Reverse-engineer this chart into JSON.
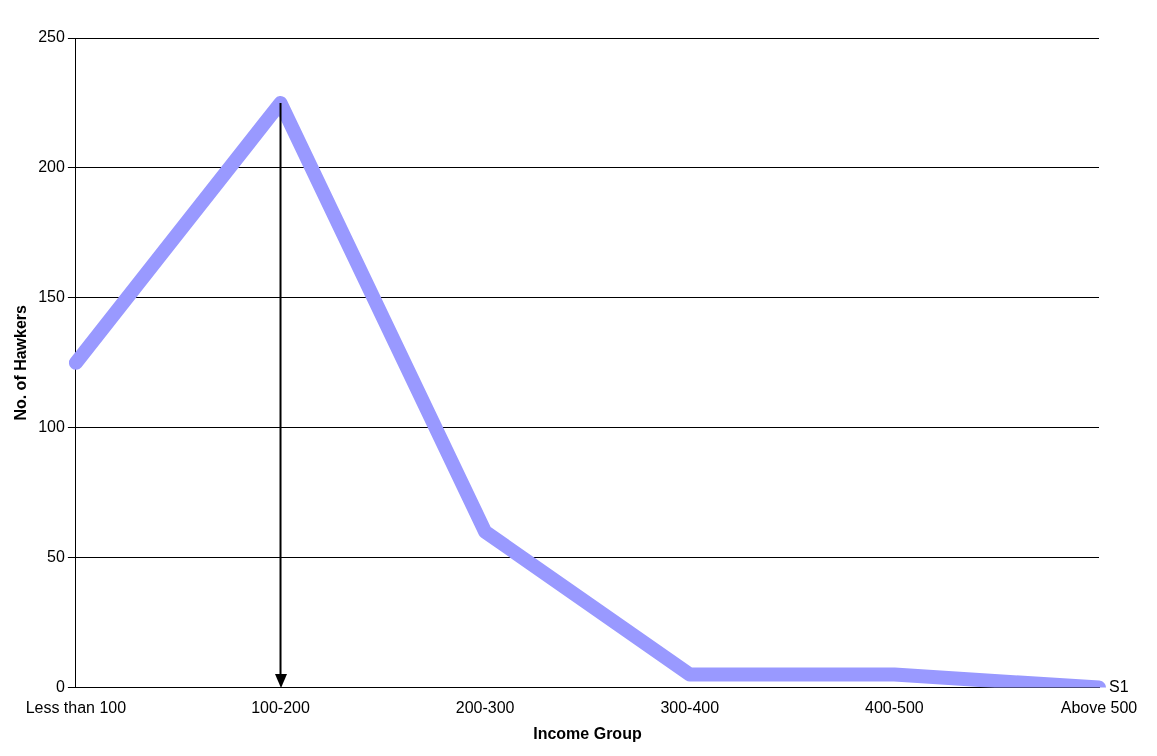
{
  "chart_data": {
    "type": "line",
    "xlabel": "Income Group",
    "ylabel": "No. of Hawkers",
    "categories": [
      "Less than 100",
      "100-200",
      "200-300",
      "300-400",
      "400-500",
      "Above 500"
    ],
    "series": [
      {
        "name": "S1",
        "color": "#9999ff",
        "values": [
          125,
          225,
          60,
          5,
          5,
          0
        ]
      }
    ],
    "ref_lines": [
      {
        "axis": "x",
        "value": "100-200",
        "color": "#000000"
      }
    ],
    "ylim": [
      0,
      250
    ],
    "yticks": [
      0,
      50,
      100,
      150,
      200,
      250
    ],
    "grid": "y",
    "legend": false,
    "marker": "none",
    "line_style": "solid"
  }
}
